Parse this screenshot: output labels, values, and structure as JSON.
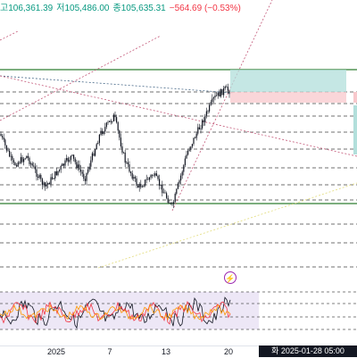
{
  "ohlc": {
    "high": "고106,361.39",
    "low": "저105,486.00",
    "close": "종105,635.31",
    "change": "−564.69 (−0.53%)"
  },
  "time_axis": {
    "ticks": [
      "2025",
      "7",
      "13",
      "20"
    ],
    "crosshair": "화 2025-01-28  05:00"
  },
  "icons": {
    "alert": "lightning-icon"
  },
  "colors": {
    "up": "#089981",
    "down": "#f23645",
    "candle": "#131722",
    "trend_line": "#c45a7a",
    "support_line": "#2e7d32",
    "oscillator_band": "#ede7f6"
  }
}
